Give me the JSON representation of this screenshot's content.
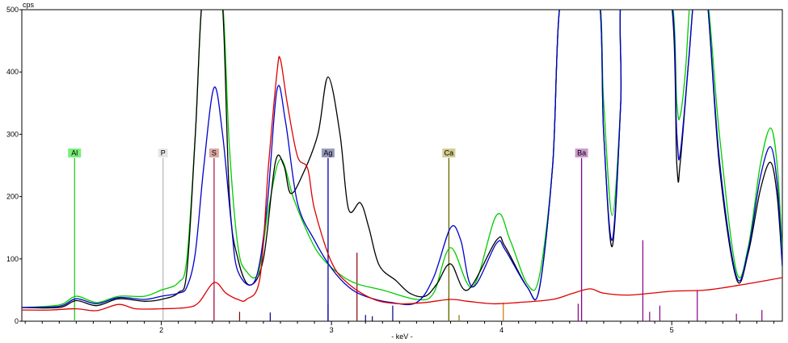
{
  "chart_data": {
    "type": "line",
    "title": "",
    "xlabel": "- keV -",
    "ylabel": "cps",
    "xlim": [
      1.18,
      5.65
    ],
    "ylim": [
      0,
      500
    ],
    "grid": false,
    "x_ticks": [
      "2",
      "3",
      "4",
      "5"
    ],
    "x_tick_values": [
      2,
      3,
      4,
      5
    ],
    "y_ticks": [
      "0",
      "100",
      "200",
      "300",
      "400",
      "500"
    ],
    "y_tick_values": [
      0,
      100,
      200,
      300,
      400,
      500
    ],
    "series": [
      {
        "color": "#00cc00",
        "points": [
          [
            1.18,
            22
          ],
          [
            1.4,
            26
          ],
          [
            1.5,
            40
          ],
          [
            1.62,
            30
          ],
          [
            1.75,
            40
          ],
          [
            1.9,
            40
          ],
          [
            2.0,
            50
          ],
          [
            2.1,
            62
          ],
          [
            2.15,
            100
          ],
          [
            2.2,
            300
          ],
          [
            2.25,
            540
          ],
          [
            2.35,
            540
          ],
          [
            2.4,
            280
          ],
          [
            2.45,
            120
          ],
          [
            2.5,
            80
          ],
          [
            2.57,
            78
          ],
          [
            2.63,
            180
          ],
          [
            2.7,
            260
          ],
          [
            2.78,
            195
          ],
          [
            2.88,
            130
          ],
          [
            2.95,
            100
          ],
          [
            3.05,
            75
          ],
          [
            3.15,
            60
          ],
          [
            3.3,
            50
          ],
          [
            3.5,
            35
          ],
          [
            3.6,
            45
          ],
          [
            3.7,
            118
          ],
          [
            3.83,
            55
          ],
          [
            3.97,
            170
          ],
          [
            4.05,
            130
          ],
          [
            4.15,
            60
          ],
          [
            4.22,
            70
          ],
          [
            4.3,
            250
          ],
          [
            4.36,
            540
          ],
          [
            4.56,
            540
          ],
          [
            4.6,
            350
          ],
          [
            4.65,
            170
          ],
          [
            4.7,
            350
          ],
          [
            4.72,
            540
          ],
          [
            4.98,
            540
          ],
          [
            5.03,
            350
          ],
          [
            5.05,
            330
          ],
          [
            5.08,
            400
          ],
          [
            5.12,
            540
          ],
          [
            5.2,
            540
          ],
          [
            5.28,
            300
          ],
          [
            5.38,
            80
          ],
          [
            5.45,
            120
          ],
          [
            5.52,
            250
          ],
          [
            5.58,
            310
          ],
          [
            5.62,
            250
          ],
          [
            5.65,
            110
          ]
        ]
      },
      {
        "color": "#000000",
        "points": [
          [
            1.18,
            22
          ],
          [
            1.4,
            22
          ],
          [
            1.5,
            33
          ],
          [
            1.62,
            25
          ],
          [
            1.75,
            36
          ],
          [
            1.9,
            32
          ],
          [
            2.0,
            35
          ],
          [
            2.1,
            46
          ],
          [
            2.15,
            80
          ],
          [
            2.2,
            300
          ],
          [
            2.25,
            540
          ],
          [
            2.35,
            540
          ],
          [
            2.4,
            200
          ],
          [
            2.45,
            100
          ],
          [
            2.52,
            58
          ],
          [
            2.6,
            100
          ],
          [
            2.67,
            255
          ],
          [
            2.72,
            250
          ],
          [
            2.76,
            205
          ],
          [
            2.83,
            235
          ],
          [
            2.92,
            300
          ],
          [
            2.98,
            392
          ],
          [
            3.05,
            300
          ],
          [
            3.1,
            180
          ],
          [
            3.17,
            190
          ],
          [
            3.22,
            150
          ],
          [
            3.28,
            90
          ],
          [
            3.38,
            65
          ],
          [
            3.46,
            45
          ],
          [
            3.55,
            40
          ],
          [
            3.62,
            60
          ],
          [
            3.7,
            92
          ],
          [
            3.8,
            50
          ],
          [
            3.97,
            130
          ],
          [
            4.02,
            120
          ],
          [
            4.15,
            55
          ],
          [
            4.22,
            50
          ],
          [
            4.3,
            250
          ],
          [
            4.36,
            540
          ],
          [
            4.56,
            540
          ],
          [
            4.6,
            300
          ],
          [
            4.65,
            120
          ],
          [
            4.7,
            350
          ],
          [
            4.72,
            540
          ],
          [
            4.98,
            540
          ],
          [
            5.03,
            250
          ],
          [
            5.05,
            255
          ],
          [
            5.1,
            420
          ],
          [
            5.14,
            540
          ],
          [
            5.2,
            540
          ],
          [
            5.28,
            250
          ],
          [
            5.38,
            68
          ],
          [
            5.45,
            110
          ],
          [
            5.52,
            210
          ],
          [
            5.58,
            255
          ],
          [
            5.62,
            200
          ],
          [
            5.65,
            88
          ]
        ]
      },
      {
        "color": "#0000cc",
        "points": [
          [
            1.18,
            22
          ],
          [
            1.4,
            24
          ],
          [
            1.5,
            36
          ],
          [
            1.62,
            28
          ],
          [
            1.75,
            38
          ],
          [
            1.9,
            35
          ],
          [
            2.0,
            40
          ],
          [
            2.1,
            45
          ],
          [
            2.15,
            55
          ],
          [
            2.2,
            110
          ],
          [
            2.25,
            250
          ],
          [
            2.31,
            375
          ],
          [
            2.36,
            300
          ],
          [
            2.41,
            160
          ],
          [
            2.45,
            80
          ],
          [
            2.55,
            65
          ],
          [
            2.62,
            180
          ],
          [
            2.68,
            372
          ],
          [
            2.73,
            320
          ],
          [
            2.8,
            190
          ],
          [
            2.9,
            130
          ],
          [
            3.0,
            85
          ],
          [
            3.1,
            55
          ],
          [
            3.2,
            40
          ],
          [
            3.35,
            30
          ],
          [
            3.5,
            30
          ],
          [
            3.6,
            70
          ],
          [
            3.7,
            150
          ],
          [
            3.76,
            130
          ],
          [
            3.83,
            55
          ],
          [
            3.97,
            125
          ],
          [
            4.02,
            115
          ],
          [
            4.15,
            55
          ],
          [
            4.22,
            50
          ],
          [
            4.3,
            250
          ],
          [
            4.36,
            540
          ],
          [
            4.56,
            540
          ],
          [
            4.6,
            300
          ],
          [
            4.65,
            130
          ],
          [
            4.7,
            350
          ],
          [
            4.72,
            540
          ],
          [
            4.98,
            540
          ],
          [
            5.03,
            300
          ],
          [
            5.05,
            270
          ],
          [
            5.1,
            420
          ],
          [
            5.14,
            540
          ],
          [
            5.2,
            540
          ],
          [
            5.28,
            260
          ],
          [
            5.38,
            72
          ],
          [
            5.45,
            115
          ],
          [
            5.52,
            230
          ],
          [
            5.58,
            280
          ],
          [
            5.62,
            220
          ],
          [
            5.65,
            92
          ]
        ]
      },
      {
        "color": "#dd0000",
        "points": [
          [
            1.18,
            18
          ],
          [
            1.35,
            18
          ],
          [
            1.5,
            20
          ],
          [
            1.62,
            17
          ],
          [
            1.75,
            27
          ],
          [
            1.85,
            20
          ],
          [
            2.0,
            20
          ],
          [
            2.15,
            22
          ],
          [
            2.22,
            30
          ],
          [
            2.31,
            62
          ],
          [
            2.38,
            45
          ],
          [
            2.45,
            35
          ],
          [
            2.5,
            35
          ],
          [
            2.58,
            70
          ],
          [
            2.63,
            250
          ],
          [
            2.68,
            400
          ],
          [
            2.7,
            420
          ],
          [
            2.74,
            350
          ],
          [
            2.8,
            265
          ],
          [
            2.86,
            245
          ],
          [
            2.9,
            180
          ],
          [
            3.0,
            95
          ],
          [
            3.1,
            60
          ],
          [
            3.25,
            35
          ],
          [
            3.4,
            28
          ],
          [
            3.55,
            30
          ],
          [
            3.7,
            35
          ],
          [
            3.8,
            32
          ],
          [
            3.95,
            28
          ],
          [
            4.1,
            30
          ],
          [
            4.3,
            35
          ],
          [
            4.42,
            45
          ],
          [
            4.52,
            52
          ],
          [
            4.6,
            45
          ],
          [
            4.75,
            42
          ],
          [
            5.0,
            48
          ],
          [
            5.2,
            50
          ],
          [
            5.4,
            58
          ],
          [
            5.65,
            70
          ]
        ]
      }
    ],
    "element_markers": [
      {
        "label": "Al",
        "x": 1.49,
        "color": "#22cc22",
        "box_color": "#77ee77"
      },
      {
        "label": "P",
        "x": 2.01,
        "color": "#bbbbbb",
        "box_color": "#e6e6e6"
      },
      {
        "label": "S",
        "x": 2.31,
        "color": "#aa2255",
        "box_color": "#d9a7a0"
      },
      {
        "label": "Ag",
        "x": 2.98,
        "color": "#0000aa",
        "box_color": "#9999bb"
      },
      {
        "label": "Ca",
        "x": 3.69,
        "color": "#666600",
        "box_color": "#d2cc90"
      },
      {
        "label": "Ba",
        "x": 4.47,
        "color": "#880088",
        "box_color": "#cc99cc"
      }
    ],
    "marker_label_value": 270,
    "marker_line_top_value": 262,
    "spectral_lines": [
      {
        "x": 2.31,
        "v": 50,
        "color": "#880000"
      },
      {
        "x": 2.46,
        "v": 15,
        "color": "#880000"
      },
      {
        "x": 2.64,
        "v": 14,
        "color": "#000088"
      },
      {
        "x": 2.98,
        "v": 28,
        "color": "#000088"
      },
      {
        "x": 3.15,
        "v": 110,
        "color": "#880000"
      },
      {
        "x": 3.2,
        "v": 10,
        "color": "#000088"
      },
      {
        "x": 3.24,
        "v": 8,
        "color": "#000088"
      },
      {
        "x": 3.36,
        "v": 25,
        "color": "#000088"
      },
      {
        "x": 3.69,
        "v": 40,
        "color": "#887700"
      },
      {
        "x": 3.75,
        "v": 10,
        "color": "#887700"
      },
      {
        "x": 4.01,
        "v": 30,
        "color": "#cc7700"
      },
      {
        "x": 4.45,
        "v": 28,
        "color": "#880088"
      },
      {
        "x": 4.83,
        "v": 130,
        "color": "#880088"
      },
      {
        "x": 4.87,
        "v": 15,
        "color": "#880088"
      },
      {
        "x": 4.93,
        "v": 25,
        "color": "#880088"
      },
      {
        "x": 5.15,
        "v": 50,
        "color": "#880088"
      },
      {
        "x": 5.38,
        "v": 12,
        "color": "#880088"
      },
      {
        "x": 5.53,
        "v": 18,
        "color": "#880088"
      }
    ]
  }
}
